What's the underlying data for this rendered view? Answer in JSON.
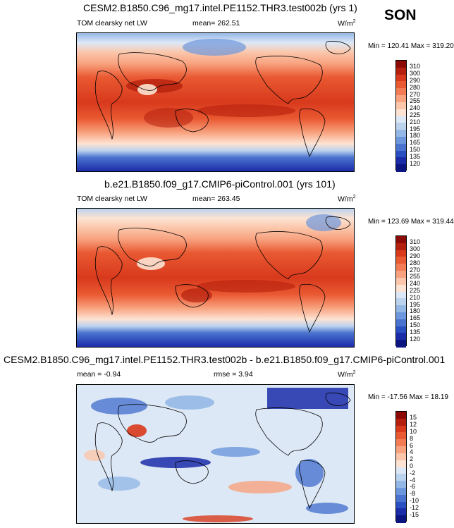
{
  "season": "SON",
  "panels": [
    {
      "title": "CESM2.B1850.C96_mg17.intel.PE1152.THR3.test002b (yrs 1)",
      "variable": "TOM clearsky net LW",
      "stat": "mean= 262.51",
      "units": "W/m",
      "units_sup": "2",
      "minmax": "Min = 120.41 Max = 319.20",
      "levels": [
        "310",
        "300",
        "290",
        "280",
        "270",
        "255",
        "240",
        "225",
        "210",
        "195",
        "180",
        "165",
        "150",
        "135",
        "120"
      ],
      "colors": [
        "#8b0a05",
        "#b5200e",
        "#d8391c",
        "#e95932",
        "#f37c55",
        "#f8a27f",
        "#fbc6aa",
        "#fde3d3",
        "#dde8f6",
        "#bcd3ee",
        "#94b8e6",
        "#6d97dc",
        "#4a73cf",
        "#2a4fc0",
        "#1b2ca8",
        "#0b1580"
      ]
    },
    {
      "title": "b.e21.B1850.f09_g17.CMIP6-piControl.001 (yrs 101)",
      "variable": "TOM clearsky net LW",
      "stat": "mean= 263.45",
      "units": "W/m",
      "units_sup": "2",
      "minmax": "Min = 123.69 Max = 319.44",
      "levels": [
        "310",
        "300",
        "290",
        "280",
        "270",
        "255",
        "240",
        "225",
        "210",
        "195",
        "180",
        "165",
        "150",
        "135",
        "120"
      ],
      "colors": [
        "#8b0a05",
        "#b5200e",
        "#d8391c",
        "#e95932",
        "#f37c55",
        "#f8a27f",
        "#fbc6aa",
        "#fde3d3",
        "#dde8f6",
        "#bcd3ee",
        "#94b8e6",
        "#6d97dc",
        "#4a73cf",
        "#2a4fc0",
        "#1b2ca8",
        "#0b1580"
      ]
    },
    {
      "title": "CESM2.B1850.C96_mg17.intel.PE1152.THR3.test002b - b.e21.B1850.f09_g17.CMIP6-piControl.001",
      "variable": "mean =  -0.94",
      "stat": "rmse =   3.94",
      "units": "W/m",
      "units_sup": "2",
      "minmax": "Min = -17.56 Max =  18.19",
      "levels": [
        "15",
        "12",
        "10",
        "8",
        "6",
        "4",
        "2",
        "0",
        "-2",
        "-4",
        "-6",
        "-8",
        "-10",
        "-12",
        "-15"
      ],
      "colors": [
        "#8b0a05",
        "#b5200e",
        "#d8391c",
        "#e95932",
        "#f37c55",
        "#f8a27f",
        "#fbc6aa",
        "#fde3d3",
        "#dde8f6",
        "#bcd3ee",
        "#94b8e6",
        "#6d97dc",
        "#4a73cf",
        "#2a4fc0",
        "#1b2ca8",
        "#0b1580"
      ]
    }
  ]
}
